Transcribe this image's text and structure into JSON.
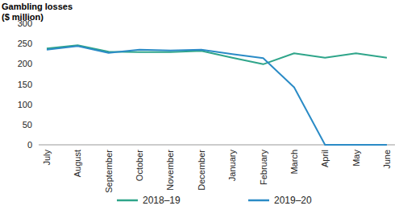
{
  "chart_data": {
    "type": "line",
    "y_label": "Gambling losses ($ million)",
    "categories": [
      "July",
      "August",
      "September",
      "October",
      "November",
      "December",
      "January",
      "February",
      "March",
      "April",
      "May",
      "June"
    ],
    "series": [
      {
        "name": "2018–19",
        "color": "#2fa58a",
        "values": [
          238,
          246,
          230,
          229,
          229,
          232,
          215,
          199,
          226,
          215,
          226,
          215
        ]
      },
      {
        "name": "2019–20",
        "color": "#2a8bc6",
        "values": [
          235,
          244,
          227,
          235,
          233,
          235,
          224,
          214,
          142,
          0,
          0,
          0
        ]
      }
    ],
    "ylim": [
      0,
      300
    ],
    "yticks": [
      0,
      50,
      100,
      150,
      200,
      250,
      300
    ],
    "grid": false,
    "legend": "bottom"
  }
}
